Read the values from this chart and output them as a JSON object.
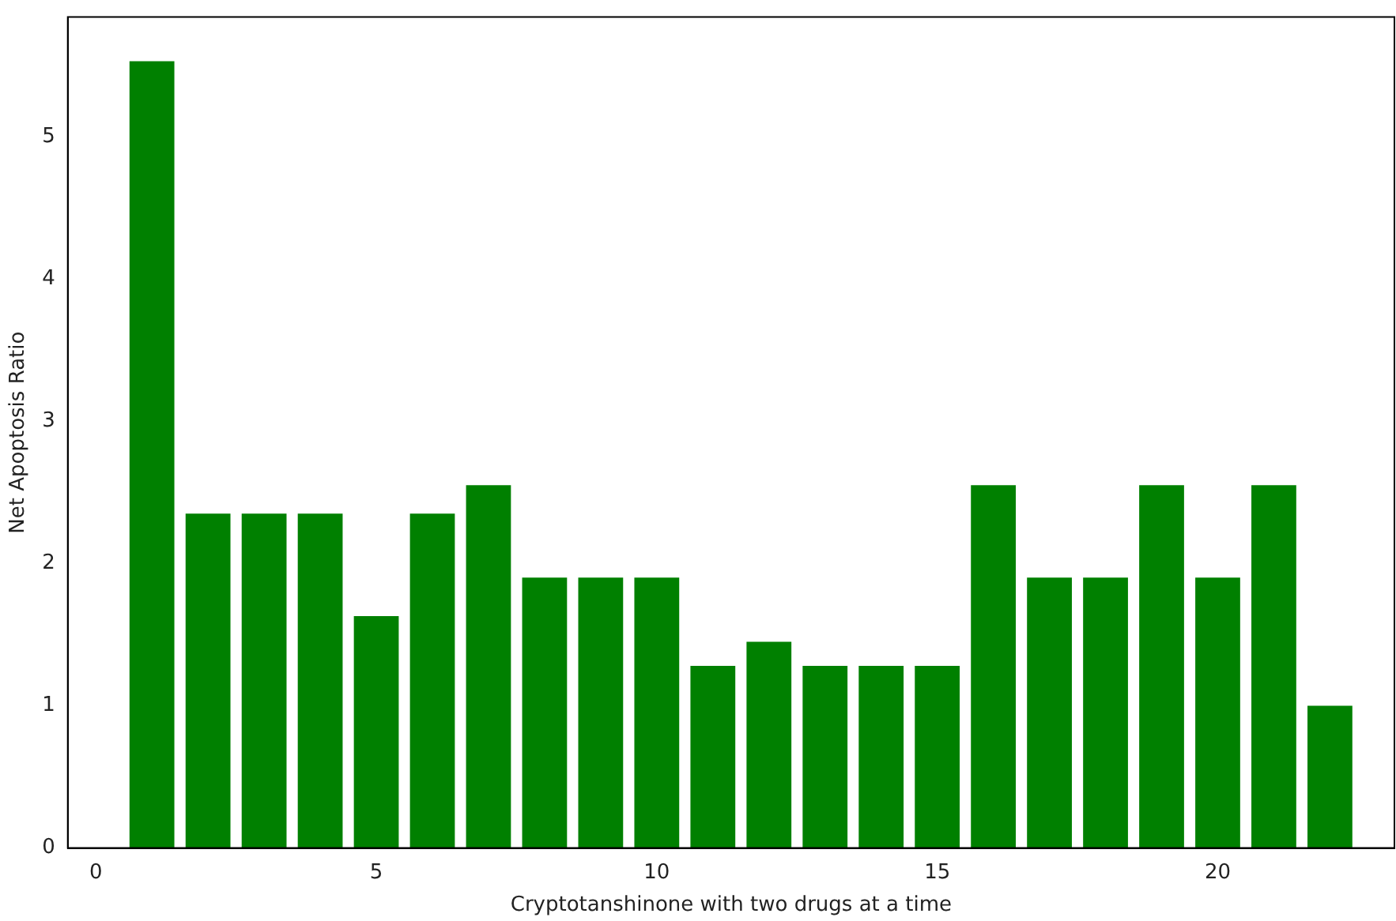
{
  "chart_data": {
    "type": "bar",
    "xlabel": "Cryptotanshinone with two drugs at a time",
    "ylabel": "Net Apoptosis Ratio",
    "x": [
      1,
      2,
      3,
      4,
      5,
      6,
      7,
      8,
      9,
      10,
      11,
      12,
      13,
      14,
      15,
      16,
      17,
      18,
      19,
      20,
      21,
      22
    ],
    "values": [
      5.53,
      2.35,
      2.35,
      2.35,
      1.63,
      2.35,
      2.55,
      1.9,
      1.9,
      1.9,
      1.28,
      1.45,
      1.28,
      1.28,
      1.28,
      2.55,
      1.9,
      1.9,
      2.55,
      1.9,
      2.55,
      1.0
    ],
    "color": "#008000",
    "xlim": [
      -0.5,
      23.15
    ],
    "xticks": [
      0,
      5,
      10,
      15,
      20
    ],
    "ylim": [
      0,
      5.84
    ],
    "yticks": [
      0,
      1,
      2,
      3,
      4,
      5
    ],
    "grid": false
  }
}
